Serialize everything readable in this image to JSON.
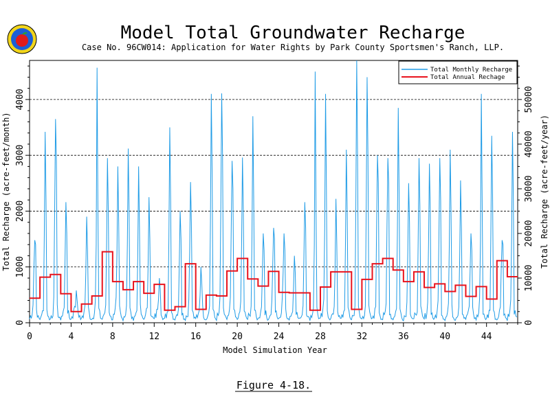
{
  "header": {
    "title": "Model Total Groundwater Recharge",
    "subtitle": "Case No. 96CW014: Application for Water Rights by Park County Sportsmen's Ranch, LLP."
  },
  "figure_caption": "Figure 4-18.",
  "chart_data": {
    "type": "line",
    "xlabel": "Model Simulation Year",
    "ylabel_left": "Total Recharge (acre-feet/month)",
    "ylabel_right": "Total Recharge (acre-feet/year)",
    "xlim": [
      0,
      47
    ],
    "ylim_left": [
      0,
      4700
    ],
    "ylim_right": [
      0,
      58750
    ],
    "x_ticks": [
      0,
      4,
      8,
      12,
      16,
      20,
      24,
      28,
      32,
      36,
      40,
      44
    ],
    "y_ticks_left": [
      0,
      1000,
      2000,
      3000,
      4000
    ],
    "y_ticks_right": [
      0,
      10000,
      20000,
      30000,
      40000,
      50000
    ],
    "gridlines_left": [
      1000,
      2000,
      3000,
      4000
    ],
    "grid_style": "dashed horizontal",
    "legend_position": "top-right",
    "series": [
      {
        "name": "Total Monthly Recharge",
        "color": "#1e9be6",
        "kind": "monthly",
        "annual_peaks": [
          1480,
          3420,
          3650,
          2160,
          580,
          1900,
          4570,
          2950,
          2800,
          3120,
          2800,
          2250,
          800,
          3500,
          2000,
          2520,
          1000,
          4100,
          4110,
          2900,
          2960,
          3700,
          1600,
          1700,
          1600,
          1200,
          2160,
          4500,
          4100,
          2220,
          3100,
          4700,
          4400,
          3000,
          2950,
          3850,
          2500,
          2950,
          2850,
          2950,
          3100,
          2550,
          1600,
          4100,
          3350
        ],
        "annual_secondary_peaks": [
          1400,
          2200,
          2900,
          1600,
          400,
          1300,
          2000,
          2000,
          1800,
          2000,
          1700,
          1500,
          600,
          2200,
          1500,
          1800,
          700,
          2600,
          3000,
          2400,
          2000,
          2200,
          1300,
          1500,
          1300,
          900,
          1700,
          2000,
          2400,
          1400,
          2000,
          3000,
          3000,
          2500,
          2500,
          2300,
          1800,
          2100,
          2000,
          2200,
          2000,
          1700,
          1300,
          2100,
          2300
        ]
      },
      {
        "name": "Total Annual Rechage",
        "color": "#e8121c",
        "kind": "annual-step",
        "values": [
          5500,
          10200,
          10800,
          6500,
          2500,
          4200,
          6000,
          15900,
          9200,
          7400,
          9200,
          6600,
          8600,
          2800,
          3600,
          13200,
          3000,
          6200,
          6000,
          11600,
          14400,
          9800,
          8200,
          11500,
          6800,
          6700,
          6700,
          2800,
          8000,
          11400,
          11400,
          3000,
          9700,
          13200,
          14400,
          11800,
          9200,
          11400,
          7900,
          8700,
          7000,
          8400,
          5900,
          8100,
          5300,
          13900,
          10300
        ]
      }
    ]
  }
}
